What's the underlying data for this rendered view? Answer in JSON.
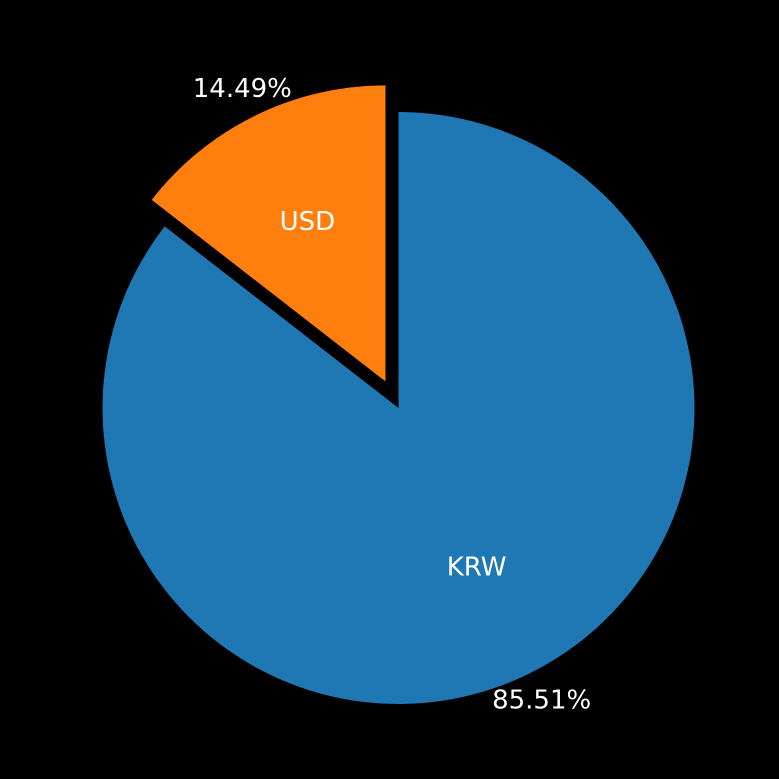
{
  "chart_data": {
    "type": "pie",
    "title": "",
    "background": "#000000",
    "slices": [
      {
        "label": "KRW",
        "value": 85.51,
        "percent_label": "85.51%",
        "color": "#1f77b4",
        "exploded": false
      },
      {
        "label": "USD",
        "value": 14.49,
        "percent_label": "14.49%",
        "color": "#ff7f0e",
        "exploded": true
      }
    ],
    "start": "12 o'clock",
    "direction": "clockwise"
  }
}
